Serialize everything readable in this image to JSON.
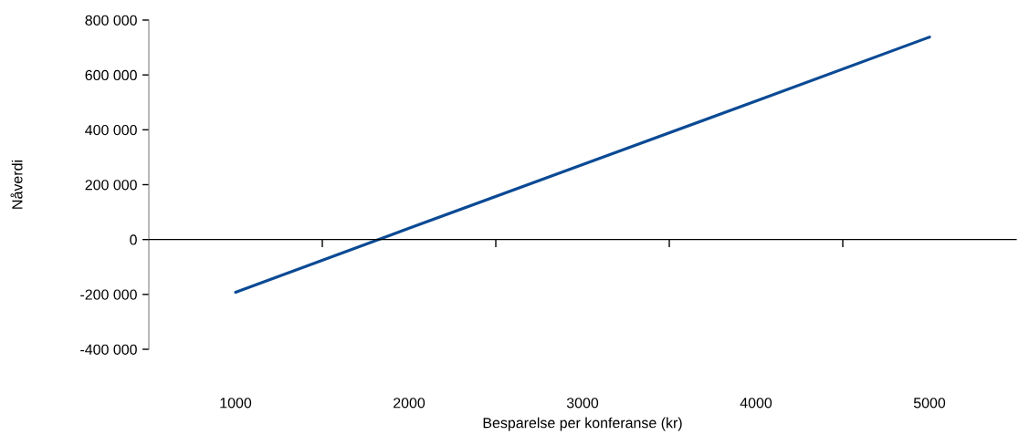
{
  "chart_data": {
    "type": "line",
    "xlabel": "Besparelse per konferanse (kr)",
    "ylabel": "Nåverdi",
    "categories": [
      "1000",
      "2000",
      "3000",
      "4000",
      "5000"
    ],
    "series": [
      {
        "color": "#0b4a94",
        "values": [
          -192000,
          41000,
          273000,
          505000,
          738000
        ]
      }
    ],
    "ylim": [
      -400000,
      800000
    ],
    "yticks": [
      {
        "value": -400000,
        "label": "-400 000"
      },
      {
        "value": -200000,
        "label": "-200 000"
      },
      0,
      {
        "value": 200000,
        "label": "200 000"
      },
      {
        "value": 400000,
        "label": "400 000"
      },
      {
        "value": 600000,
        "label": "600 000"
      },
      {
        "value": 800000,
        "label": "800 000"
      }
    ],
    "marker": "none",
    "line_style": "solid"
  }
}
